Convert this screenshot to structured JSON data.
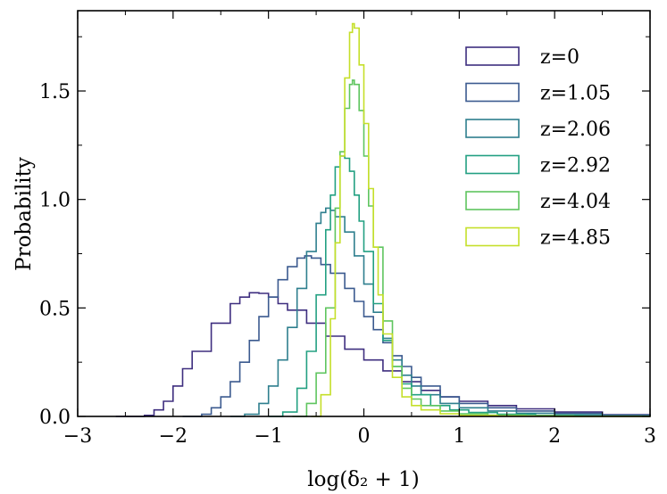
{
  "chart_data": {
    "type": "line",
    "title": "",
    "xlabel": "log(δ₂ + 1)",
    "ylabel": "Probability",
    "xlim": [
      -3,
      3
    ],
    "ylim": [
      0,
      1.87
    ],
    "xticks": [
      -3,
      -2,
      -1,
      0,
      1,
      2,
      3
    ],
    "xtick_labels": [
      "−3",
      "−2",
      "−1",
      "0",
      "1",
      "2",
      "3"
    ],
    "yticks": [
      0.0,
      0.5,
      1.0,
      1.5
    ],
    "ytick_labels": [
      "0.0",
      "0.5",
      "1.0",
      "1.5"
    ],
    "legend_position": "top-right",
    "series": [
      {
        "name": "z=0",
        "color": "#3e2e7f",
        "x": [
          -2.6,
          -2.3,
          -2.2,
          -2.1,
          -2.0,
          -1.9,
          -1.8,
          -1.6,
          -1.4,
          -1.3,
          -1.2,
          -1.15,
          -1.1,
          -1.0,
          -0.9,
          -0.8,
          -0.6,
          -0.4,
          -0.2,
          0.0,
          0.2,
          0.4,
          0.6,
          0.8,
          1.0,
          1.3,
          1.6,
          2.0,
          2.5,
          3.0
        ],
        "values": [
          0.0,
          0.005,
          0.03,
          0.07,
          0.14,
          0.22,
          0.3,
          0.43,
          0.52,
          0.55,
          0.57,
          0.57,
          0.567,
          0.55,
          0.52,
          0.49,
          0.43,
          0.37,
          0.31,
          0.26,
          0.21,
          0.16,
          0.12,
          0.09,
          0.07,
          0.05,
          0.035,
          0.02,
          0.008,
          0.003
        ]
      },
      {
        "name": "z=1.05",
        "color": "#3b5a8f",
        "x": [
          -1.9,
          -1.7,
          -1.6,
          -1.5,
          -1.4,
          -1.3,
          -1.2,
          -1.1,
          -1.0,
          -0.9,
          -0.8,
          -0.7,
          -0.62,
          -0.55,
          -0.45,
          -0.35,
          -0.2,
          -0.1,
          0.0,
          0.1,
          0.2,
          0.3,
          0.4,
          0.5,
          0.6,
          0.8,
          1.0,
          1.3,
          1.6,
          2.0,
          2.5,
          3.0
        ],
        "values": [
          0.0,
          0.01,
          0.04,
          0.09,
          0.16,
          0.25,
          0.35,
          0.46,
          0.55,
          0.63,
          0.69,
          0.73,
          0.74,
          0.73,
          0.7,
          0.66,
          0.59,
          0.53,
          0.46,
          0.4,
          0.34,
          0.28,
          0.23,
          0.18,
          0.14,
          0.09,
          0.06,
          0.04,
          0.025,
          0.015,
          0.006,
          0.002
        ]
      },
      {
        "name": "z=2.06",
        "color": "#2e7f8e",
        "x": [
          -1.4,
          -1.25,
          -1.1,
          -1.0,
          -0.9,
          -0.8,
          -0.7,
          -0.6,
          -0.5,
          -0.45,
          -0.4,
          -0.35,
          -0.3,
          -0.2,
          -0.1,
          0.0,
          0.1,
          0.2,
          0.3,
          0.4,
          0.5,
          0.6,
          0.8,
          1.0,
          1.3,
          1.6,
          2.0,
          2.5,
          3.0
        ],
        "values": [
          0.0,
          0.01,
          0.06,
          0.14,
          0.26,
          0.41,
          0.59,
          0.76,
          0.89,
          0.94,
          0.96,
          0.95,
          0.92,
          0.85,
          0.74,
          0.61,
          0.48,
          0.36,
          0.26,
          0.19,
          0.14,
          0.1,
          0.06,
          0.04,
          0.025,
          0.015,
          0.008,
          0.003,
          0.001
        ]
      },
      {
        "name": "z=2.92",
        "color": "#23a082",
        "x": [
          -1.0,
          -0.85,
          -0.7,
          -0.6,
          -0.5,
          -0.4,
          -0.35,
          -0.3,
          -0.25,
          -0.2,
          -0.15,
          -0.1,
          -0.05,
          0.0,
          0.1,
          0.2,
          0.3,
          0.4,
          0.5,
          0.7,
          0.9,
          1.1,
          1.4,
          1.8,
          2.3,
          3.0
        ],
        "values": [
          0.0,
          0.02,
          0.13,
          0.3,
          0.56,
          0.86,
          1.02,
          1.15,
          1.2,
          1.19,
          1.13,
          1.02,
          0.9,
          0.76,
          0.52,
          0.35,
          0.23,
          0.15,
          0.1,
          0.05,
          0.03,
          0.018,
          0.01,
          0.005,
          0.002,
          0.0005
        ]
      },
      {
        "name": "z=4.04",
        "color": "#5fc55f",
        "x": [
          -0.75,
          -0.6,
          -0.5,
          -0.4,
          -0.3,
          -0.25,
          -0.2,
          -0.15,
          -0.12,
          -0.1,
          -0.05,
          0.0,
          0.05,
          0.1,
          0.2,
          0.3,
          0.4,
          0.5,
          0.6,
          0.8,
          1.0,
          1.3,
          1.7,
          2.2,
          3.0
        ],
        "values": [
          0.0,
          0.06,
          0.2,
          0.5,
          0.96,
          1.22,
          1.42,
          1.53,
          1.55,
          1.53,
          1.41,
          1.2,
          0.97,
          0.78,
          0.44,
          0.23,
          0.13,
          0.08,
          0.05,
          0.025,
          0.012,
          0.006,
          0.003,
          0.001,
          0.0002
        ]
      },
      {
        "name": "z=4.85",
        "color": "#c5df2a",
        "x": [
          -0.55,
          -0.45,
          -0.35,
          -0.3,
          -0.25,
          -0.2,
          -0.15,
          -0.12,
          -0.1,
          -0.05,
          0.0,
          0.05,
          0.1,
          0.15,
          0.2,
          0.3,
          0.4,
          0.5,
          0.6,
          0.8,
          1.0,
          1.4,
          2.0,
          3.0
        ],
        "values": [
          0.0,
          0.1,
          0.45,
          0.8,
          1.2,
          1.56,
          1.77,
          1.81,
          1.79,
          1.62,
          1.35,
          1.05,
          0.78,
          0.56,
          0.38,
          0.18,
          0.09,
          0.05,
          0.03,
          0.012,
          0.005,
          0.002,
          0.0005,
          0.0
        ]
      }
    ]
  }
}
